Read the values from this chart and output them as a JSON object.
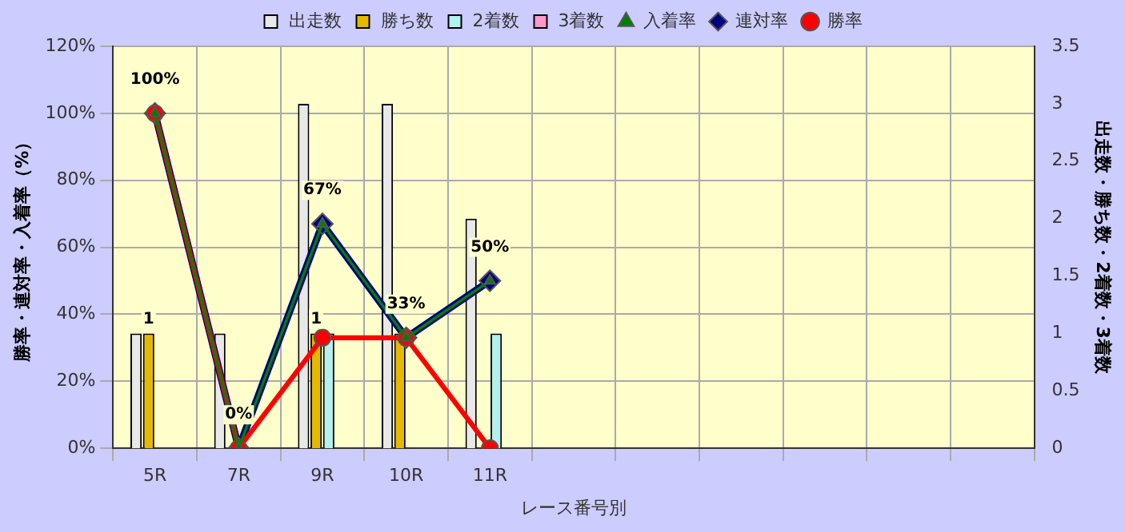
{
  "chart_data": {
    "type": "bar",
    "xlabel": "レース番号別",
    "ylabel": "勝率・連対率・入着率（%）",
    "y2label": "出走数・勝ち数・2着数・3着数",
    "categories": [
      "5R",
      "7R",
      "9R",
      "10R",
      "11R",
      null,
      null,
      null,
      null,
      null,
      null
    ],
    "series": [
      {
        "name": "出走数",
        "type": "bar",
        "axis": "y2",
        "color": "#e8e8e8",
        "values": [
          1,
          1,
          3,
          3,
          2,
          null,
          null,
          null,
          null,
          null,
          null
        ]
      },
      {
        "name": "勝ち数",
        "type": "bar",
        "axis": "y2",
        "color": "#e6b800",
        "values": [
          1,
          0,
          1,
          1,
          0,
          null,
          null,
          null,
          null,
          null,
          null
        ],
        "value_labels": [
          "1",
          null,
          "1",
          null,
          null,
          null,
          null,
          null,
          null,
          null,
          null
        ]
      },
      {
        "name": "2着数",
        "type": "bar",
        "axis": "y2",
        "color": "#b3f0f0",
        "values": [
          0,
          0,
          1,
          0,
          1,
          null,
          null,
          null,
          null,
          null,
          null
        ]
      },
      {
        "name": "3着数",
        "type": "bar",
        "axis": "y2",
        "color": "#ff99cc",
        "values": [
          0,
          0,
          0,
          0,
          0,
          null,
          null,
          null,
          null,
          null,
          null
        ]
      },
      {
        "name": "入着率",
        "type": "line",
        "axis": "y",
        "color": "#008000",
        "marker": "triangle",
        "values": [
          100,
          0,
          67,
          33,
          50,
          null,
          null,
          null,
          null,
          null,
          null
        ]
      },
      {
        "name": "連対率",
        "type": "line",
        "axis": "y",
        "color": "#000080",
        "marker": "diamond",
        "values": [
          100,
          0,
          67,
          33,
          50,
          null,
          null,
          null,
          null,
          null,
          null
        ],
        "value_labels": [
          "100%",
          "0%",
          "67%",
          "33%",
          "50%",
          null,
          null,
          null,
          null,
          null,
          null
        ]
      },
      {
        "name": "勝率",
        "type": "line",
        "axis": "y",
        "color": "#ff0000",
        "marker": "circle",
        "values": [
          100,
          0,
          33,
          33,
          0,
          null,
          null,
          null,
          null,
          null,
          null
        ]
      }
    ],
    "ylim": [
      0,
      120
    ],
    "yticks": [
      {
        "value": 0,
        "label": "0%"
      },
      {
        "value": 20,
        "label": "20%"
      },
      {
        "value": 40,
        "label": "40%"
      },
      {
        "value": 60,
        "label": "60%"
      },
      {
        "value": 80,
        "label": "80%"
      },
      {
        "value": 100,
        "label": "100%"
      },
      {
        "value": 120,
        "label": "120%"
      }
    ],
    "y2lim": [
      0,
      3.5
    ],
    "y2ticks": [
      0,
      0.5,
      1,
      1.5,
      2,
      2.5,
      3,
      3.5
    ],
    "grid": true,
    "legend": "top"
  }
}
